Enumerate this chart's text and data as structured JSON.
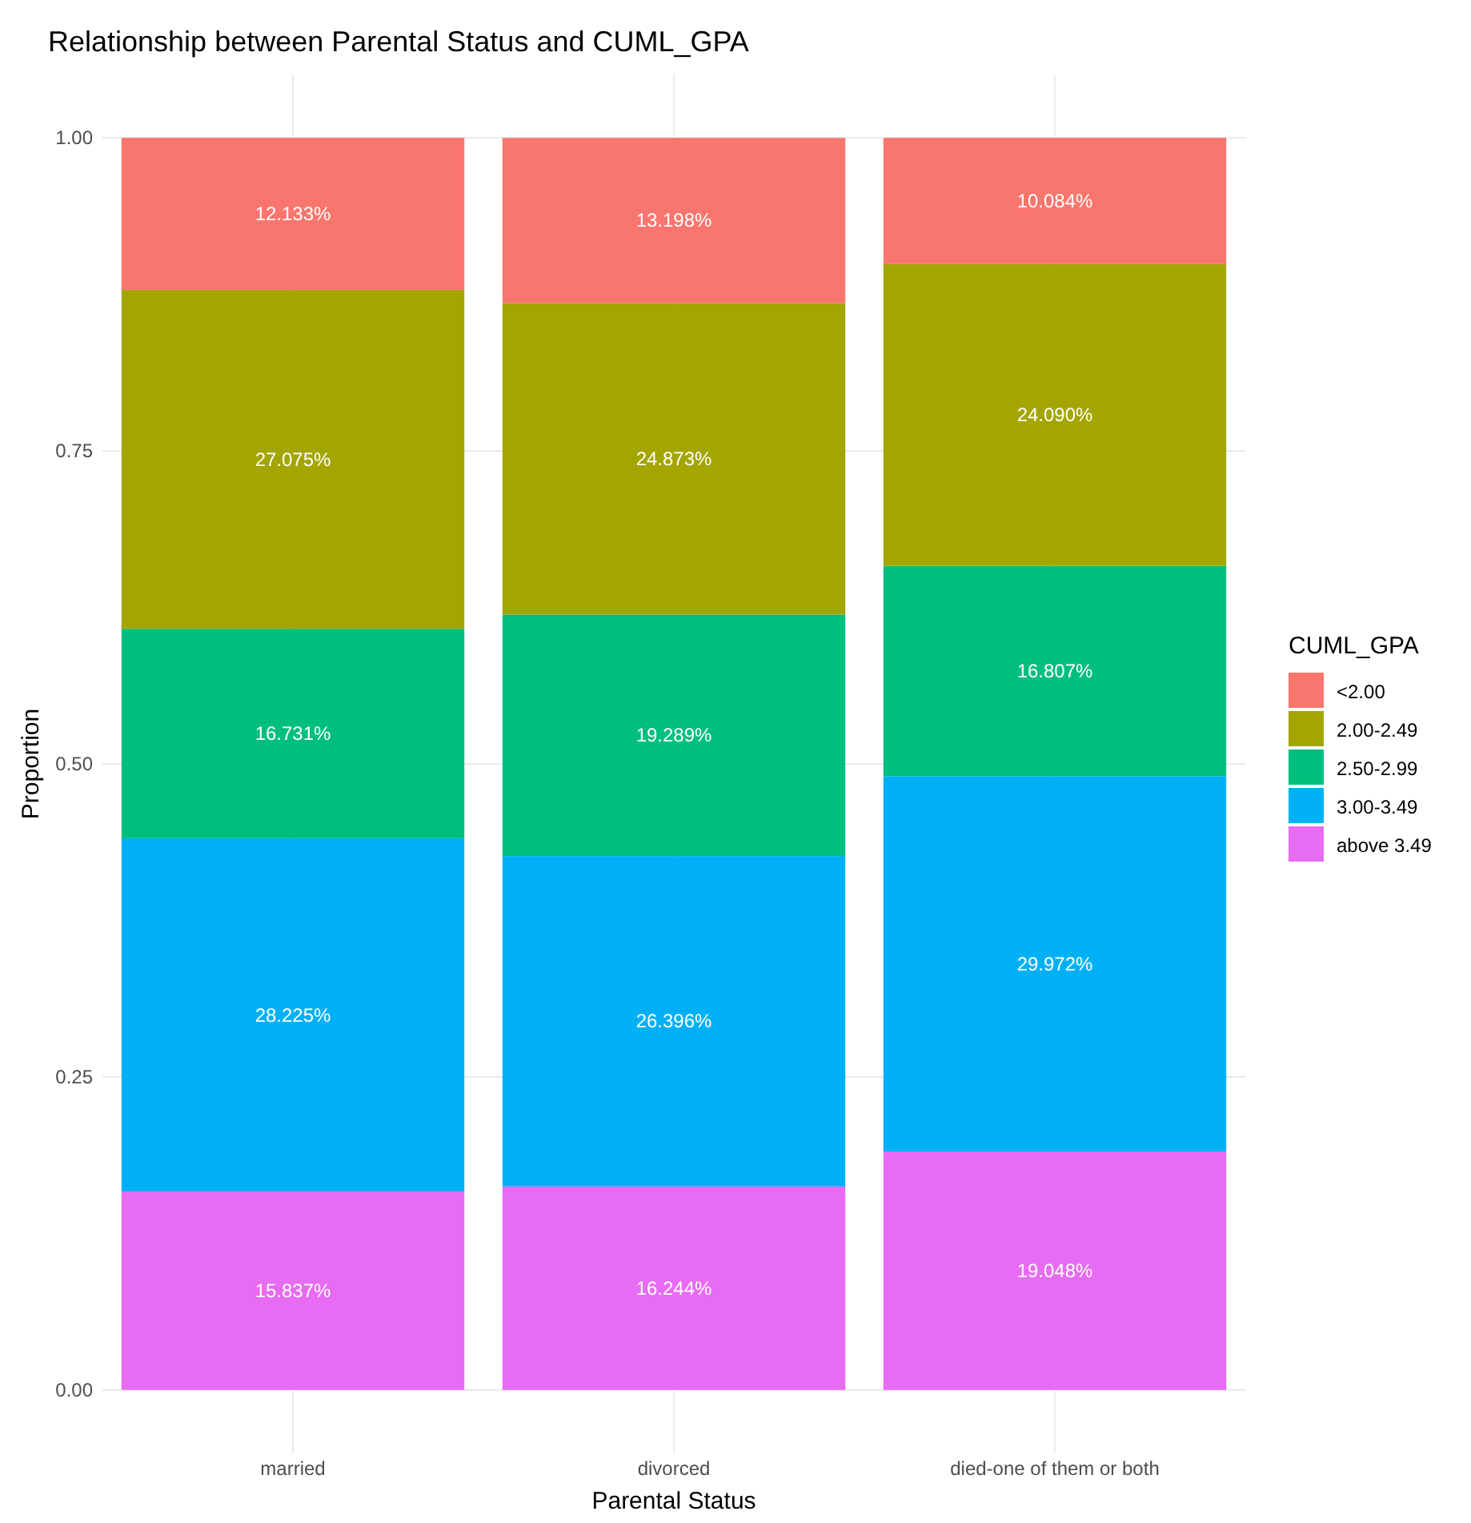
{
  "chart_data": {
    "type": "bar",
    "title": "Relationship between Parental Status and CUML_GPA",
    "xlabel": "Parental Status",
    "ylabel": "Proportion",
    "legend_title": "CUML_GPA",
    "categories": [
      "married",
      "divorced",
      "died-one of them or both"
    ],
    "stacked": true,
    "ylim": [
      -0.05,
      1.05
    ],
    "yticks": [
      "0.00",
      "0.25",
      "0.50",
      "0.75",
      "1.00"
    ],
    "grid": true,
    "legend": "right",
    "series": [
      {
        "name": "above 3.49",
        "color": "#e76bf3",
        "values": [
          0.15837,
          0.16244,
          0.19048
        ],
        "value_labels": [
          "15.837%",
          "16.244%",
          "19.048%"
        ]
      },
      {
        "name": "3.00-3.49",
        "color": "#00b0f6",
        "values": [
          0.28225,
          0.26396,
          0.29972
        ],
        "value_labels": [
          "28.225%",
          "26.396%",
          "29.972%"
        ]
      },
      {
        "name": "2.50-2.99",
        "color": "#00bf7d",
        "values": [
          0.16731,
          0.19289,
          0.16807
        ],
        "value_labels": [
          "16.731%",
          "19.289%",
          "16.807%"
        ]
      },
      {
        "name": "2.00-2.49",
        "color": "#a3a500",
        "values": [
          0.27075,
          0.24873,
          0.2409
        ],
        "value_labels": [
          "27.075%",
          "24.873%",
          "24.090%"
        ]
      },
      {
        "name": "<2.00",
        "color": "#f8766d",
        "values": [
          0.12133,
          0.13198,
          0.10084
        ],
        "value_labels": [
          "12.133%",
          "13.198%",
          "10.084%"
        ]
      }
    ]
  }
}
